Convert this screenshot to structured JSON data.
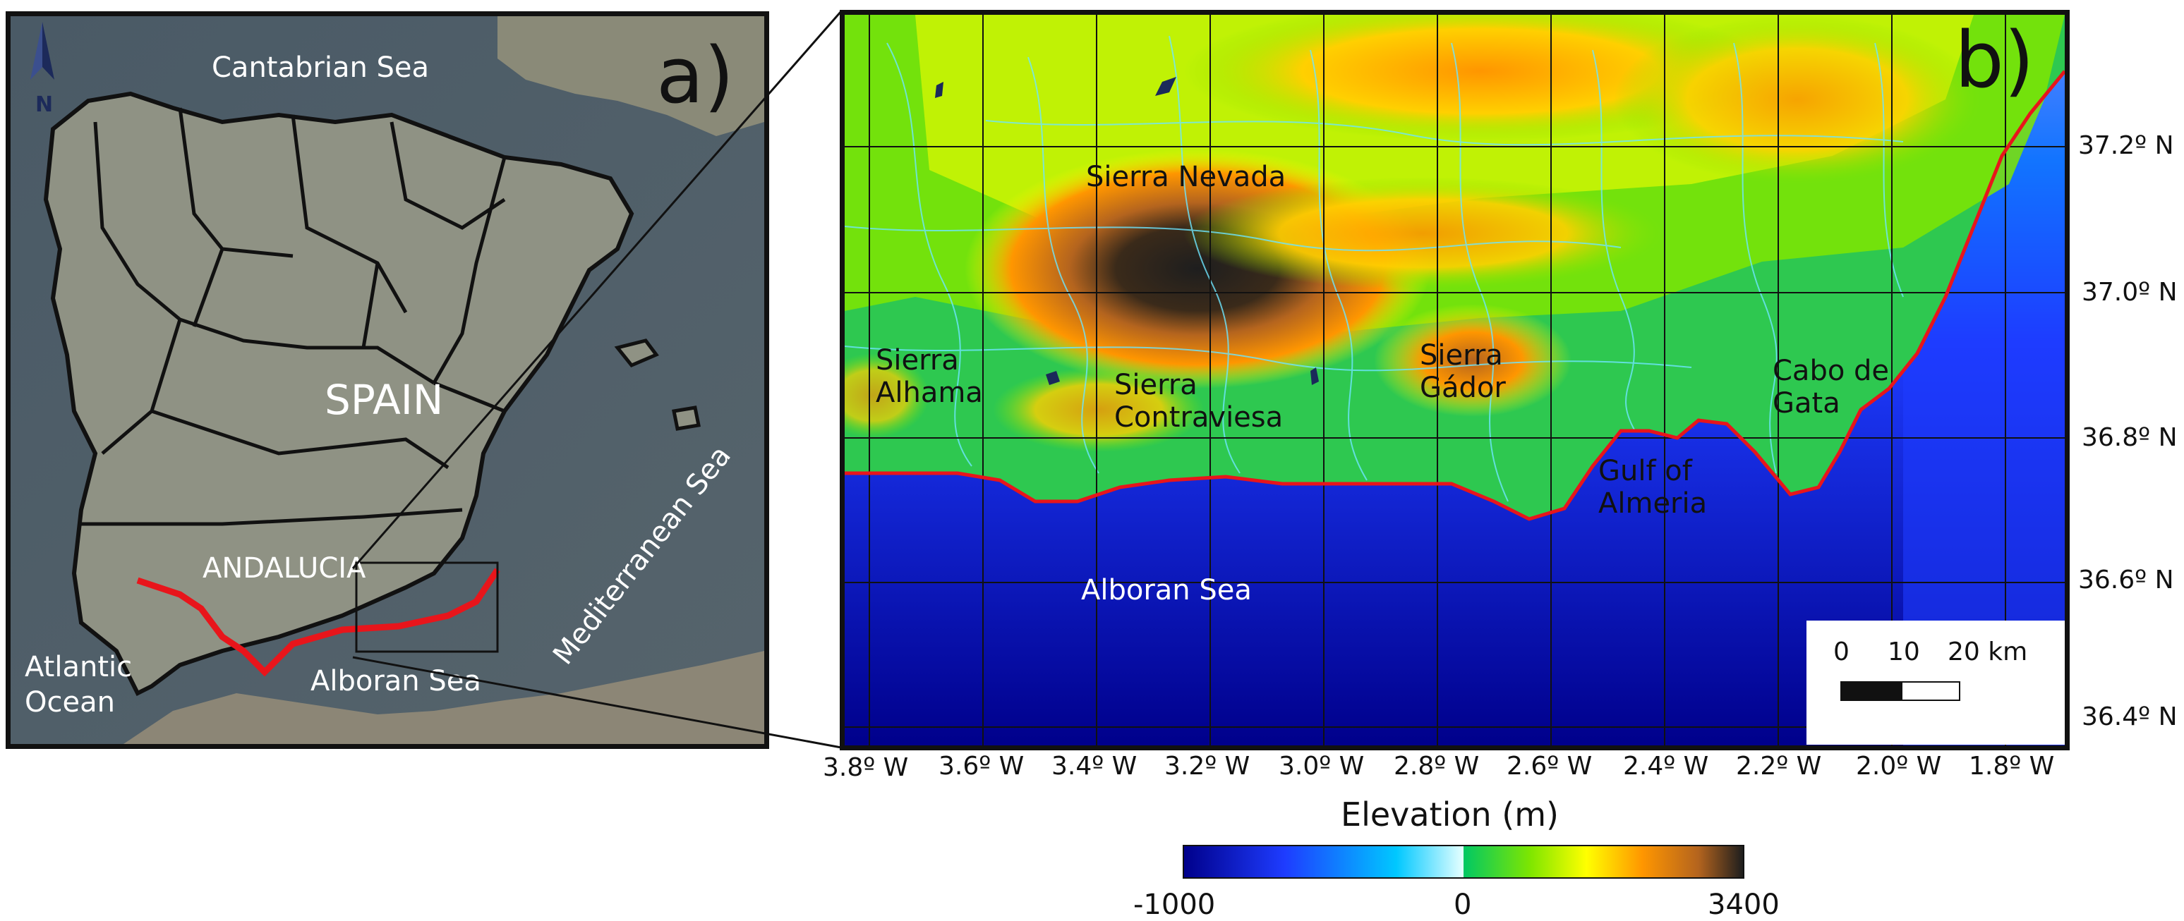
{
  "panel_a": {
    "label": "a)",
    "north_label": "N",
    "seas": {
      "cantabrian": "Cantabrian Sea",
      "atlantic_line1": "Atlantic",
      "atlantic_line2": "Ocean",
      "alboran": "Alboran Sea",
      "mediterranean": "Mediterranean Sea"
    },
    "country": "SPAIN",
    "region": "ANDALUCIA"
  },
  "panel_b": {
    "label": "b)",
    "places": {
      "sierra_nevada": "Sierra Nevada",
      "sierra_alhama_1": "Sierra",
      "sierra_alhama_2": "Alhama",
      "sierra_contraviesa_1": "Sierra",
      "sierra_contraviesa_2": "Contraviesa",
      "sierra_gador_1": "Sierra",
      "sierra_gador_2": "Gádor",
      "cabo_gata_1": "Cabo de",
      "cabo_gata_2": "Gata",
      "gulf_almeria_1": "Gulf of",
      "gulf_almeria_2": "Almeria",
      "alboran": "Alboran Sea"
    },
    "lat_labels": [
      "37.2º N",
      "37.0º N",
      "36.8º N",
      "36.6º N",
      "36.4º N"
    ],
    "lon_labels": [
      "3.8º W",
      "3.6º W",
      "3.4º W",
      "3.2º W",
      "3.0º W",
      "2.8º W",
      "2.6º W",
      "2.4º W",
      "2.2º W",
      "2.0º W",
      "1.8º W"
    ],
    "scale_bar": {
      "ticks": [
        "0",
        "10",
        "20 km"
      ]
    }
  },
  "colorbar": {
    "title": "Elevation (m)",
    "min_label": "-1000",
    "mid_label": "0",
    "max_label": "3400",
    "colors": [
      "#00008b",
      "#1e3cff",
      "#00c8ff",
      "#e6ffff",
      "#00c864",
      "#7fe600",
      "#ffff00",
      "#ff9600",
      "#b4641e",
      "#1e1e1e"
    ]
  }
}
